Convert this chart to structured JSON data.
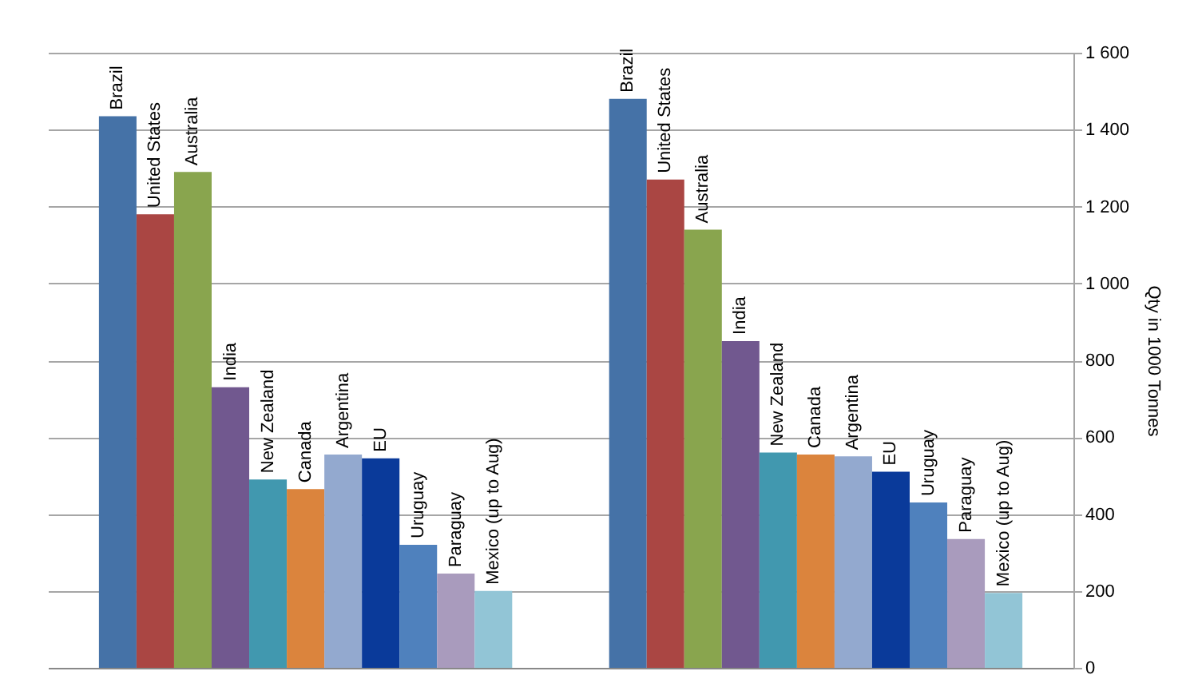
{
  "chart_data": {
    "type": "bar",
    "ylabel": "Qty in 1000 Tonnes",
    "categories": [
      null,
      null
    ],
    "series": [
      {
        "name": "Brazil",
        "color": "#4572a7",
        "values": [
          1435,
          1480
        ]
      },
      {
        "name": "United States",
        "color": "#aa4643",
        "values": [
          1180,
          1270
        ]
      },
      {
        "name": "Australia",
        "color": "#89a54e",
        "values": [
          1290,
          1140
        ]
      },
      {
        "name": "India",
        "color": "#71588f",
        "values": [
          730,
          850
        ]
      },
      {
        "name": "New Zealand",
        "color": "#4198af",
        "values": [
          490,
          560
        ]
      },
      {
        "name": "Canada",
        "color": "#db843d",
        "values": [
          465,
          555
        ]
      },
      {
        "name": "Argentina",
        "color": "#93a9cf",
        "values": [
          555,
          550
        ]
      },
      {
        "name": "EU",
        "color": "#0a3a9a",
        "values": [
          545,
          510
        ]
      },
      {
        "name": "Uruguay",
        "color": "#4f81bd",
        "values": [
          320,
          430
        ]
      },
      {
        "name": "Paraguay",
        "color": "#a99bbd",
        "values": [
          245,
          335
        ]
      },
      {
        "name": "Mexico (up to Aug)",
        "color": "#92c5d6",
        "values": [
          200,
          195
        ]
      }
    ],
    "ylim": [
      0,
      1600
    ],
    "yticks": [
      0,
      200,
      400,
      600,
      800,
      {
        "value": 1000,
        "label": "1 000"
      },
      {
        "value": 1200,
        "label": "1 200"
      },
      {
        "value": 1400,
        "label": "1 400"
      },
      {
        "value": 1600,
        "label": "1 600"
      }
    ],
    "grid": "y",
    "legend": false,
    "tick_labels": "y"
  }
}
